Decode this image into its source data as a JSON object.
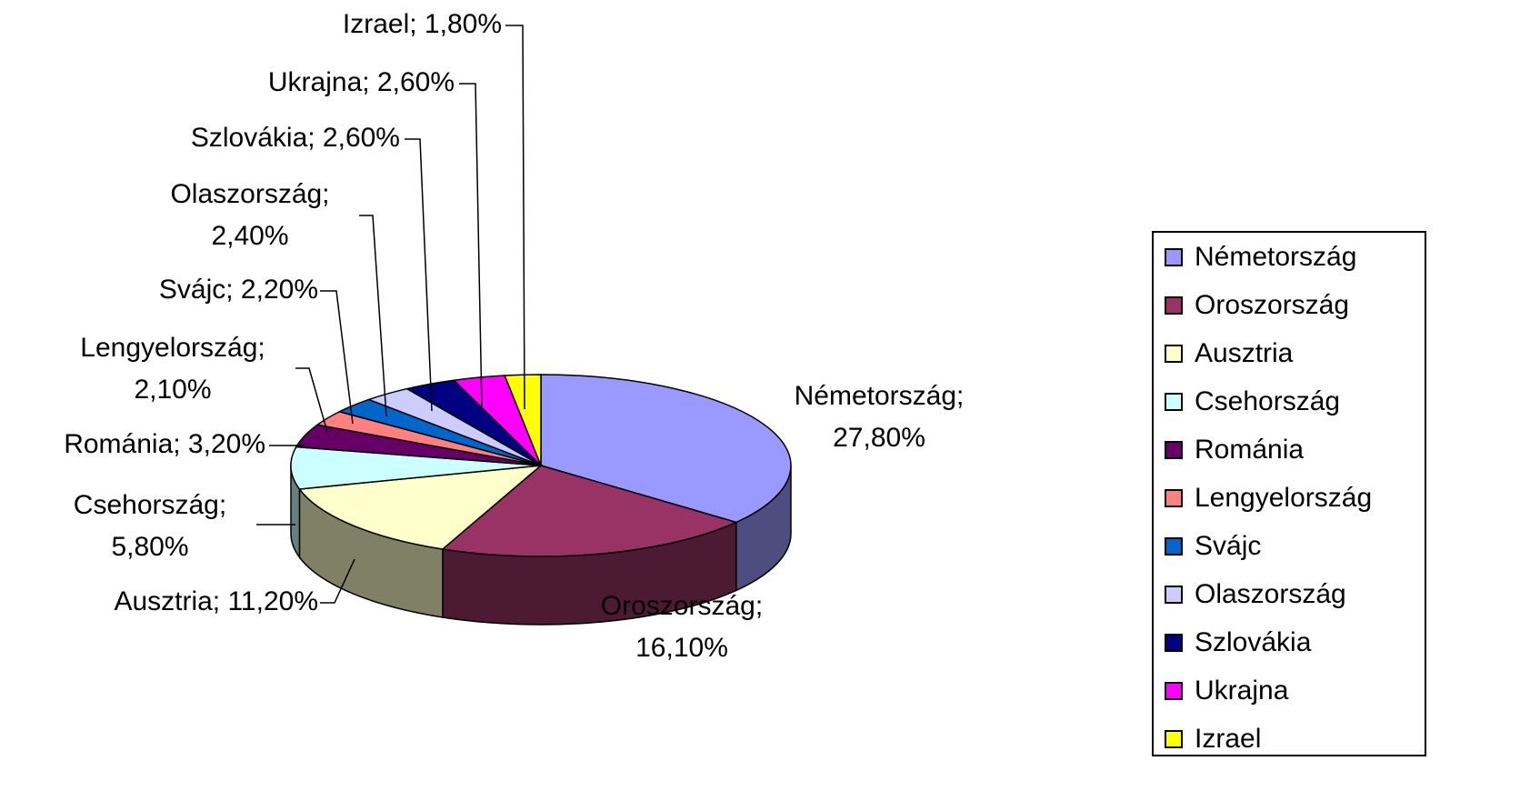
{
  "chart_data": {
    "type": "pie",
    "categories": [
      "Németország",
      "Oroszország",
      "Ausztria",
      "Csehország",
      "Románia",
      "Lengyelország",
      "Svájc",
      "Olaszország",
      "Szlovákia",
      "Ukrajna",
      "Izrael"
    ],
    "values": [
      27.8,
      16.1,
      11.2,
      5.8,
      3.2,
      2.1,
      2.2,
      2.4,
      2.6,
      2.6,
      1.8
    ],
    "value_labels": [
      "Németország; 27,80%",
      "Oroszország; 16,10%",
      "Ausztria; 11,20%",
      "Csehország; 5,80%",
      "Románia; 3,20%",
      "Lengyelország; 2,10%",
      "Svájc; 2,20%",
      "Olaszország; 2,40%",
      "Szlovákia; 2,60%",
      "Ukrajna; 2,60%",
      "Izrael; 1,80%"
    ],
    "colors": [
      "#9999ff",
      "#993366",
      "#ffffcc",
      "#ccffff",
      "#660066",
      "#ff8080",
      "#0066cc",
      "#ccccff",
      "#000080",
      "#ff00ff",
      "#ffff00"
    ],
    "legend": "right"
  }
}
